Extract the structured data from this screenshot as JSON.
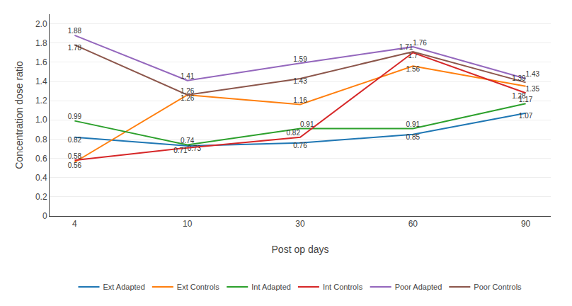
{
  "chart_data": {
    "type": "line",
    "categories": [
      "4",
      "10",
      "30",
      "60",
      "90"
    ],
    "series": [
      {
        "name": "Ext Adapted",
        "values": [
          0.82,
          0.73,
          0.76,
          0.85,
          1.07
        ]
      },
      {
        "name": "Ext Controls",
        "values": [
          0.56,
          1.26,
          1.16,
          1.56,
          1.35
        ]
      },
      {
        "name": "Int Adapted",
        "values": [
          0.99,
          0.74,
          0.91,
          0.91,
          1.17
        ]
      },
      {
        "name": "Int Controls",
        "values": [
          0.58,
          0.71,
          0.82,
          1.7,
          1.28
        ]
      },
      {
        "name": "Poor Adapted",
        "values": [
          1.88,
          1.41,
          1.59,
          1.76,
          1.43
        ]
      },
      {
        "name": "Poor Controls",
        "values": [
          1.78,
          1.26,
          1.43,
          1.71,
          1.39
        ]
      }
    ],
    "xlabel": "Post op days",
    "ylabel": "Concentration dose ratio",
    "ylim": [
      0,
      2.1
    ],
    "yticks": [
      0,
      0.2,
      0.4,
      0.6,
      0.8,
      {
        "value": 1.0,
        "label": "1.0"
      },
      1.2,
      1.4,
      1.6,
      1.8,
      {
        "value": 2.0,
        "label": "2.0"
      }
    ],
    "grid": true,
    "data_labels": true,
    "legend": "bottom"
  }
}
